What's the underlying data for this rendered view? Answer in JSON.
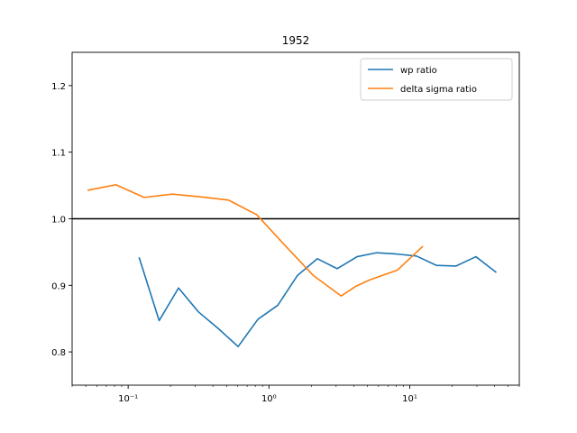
{
  "chart_data": {
    "type": "line",
    "title": "1952",
    "xlabel": "",
    "ylabel": "",
    "xscale": "log",
    "xlim": [
      0.04,
      60
    ],
    "ylim": [
      0.75,
      1.25
    ],
    "x_major_ticks": [
      0.1,
      1,
      10
    ],
    "x_tick_labels": [
      "10⁻¹",
      "10⁰",
      "10¹"
    ],
    "y_ticks": [
      0.8,
      0.9,
      1.0,
      1.1,
      1.2
    ],
    "y_tick_labels": [
      "0.8",
      "0.9",
      "1.0",
      "1.1",
      "1.2"
    ],
    "grid": false,
    "legend_position": "upper right",
    "reference_line": {
      "y": 1.0,
      "color": "#000000"
    },
    "series": [
      {
        "name": "wp ratio",
        "color": "#1f77b4",
        "x": [
          0.12,
          0.166,
          0.228,
          0.316,
          0.437,
          0.604,
          0.835,
          1.155,
          1.597,
          2.208,
          3.054,
          4.222,
          5.838,
          8.072,
          11.16,
          15.43,
          21.34,
          29.51,
          40.8
        ],
        "y": [
          0.941,
          0.847,
          0.896,
          0.86,
          0.835,
          0.808,
          0.849,
          0.87,
          0.915,
          0.94,
          0.925,
          0.943,
          0.949,
          0.947,
          0.944,
          0.93,
          0.929,
          0.943,
          0.92
        ]
      },
      {
        "name": "delta sigma ratio",
        "color": "#ff7f0e",
        "x": [
          0.052,
          0.082,
          0.13,
          0.206,
          0.326,
          0.517,
          0.819,
          1.3,
          2.06,
          3.26,
          4.1,
          5.17,
          8.19,
          12.3
        ],
        "y": [
          1.043,
          1.051,
          1.032,
          1.037,
          1.033,
          1.028,
          1.006,
          0.96,
          0.915,
          0.884,
          0.898,
          0.908,
          0.923,
          0.958
        ]
      }
    ]
  }
}
